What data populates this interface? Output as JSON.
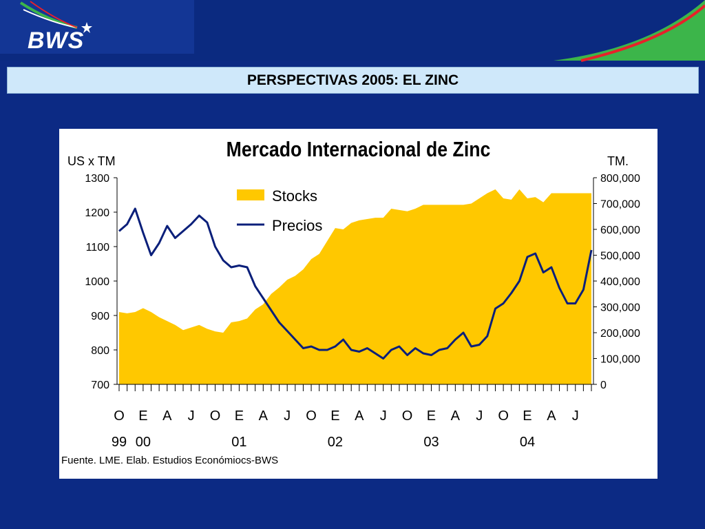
{
  "header": {
    "logo": "BWS",
    "slide_title": "PERSPECTIVAS 2005: EL ZINC"
  },
  "colors": {
    "background": "#0c2a84",
    "stocks_fill": "#ffc800",
    "prices_line": "#0a1f7a",
    "logo_swoosh_green": "#3cb54a",
    "logo_swoosh_red": "#e8202a"
  },
  "chart_data": {
    "type": "area",
    "title": "Mercado Internacional de Zinc",
    "y_left_label": "US x TM",
    "y_right_label": "TM.",
    "y_left_range": [
      700,
      1300
    ],
    "y_left_ticks": [
      "1300",
      "1200",
      "1100",
      "1000",
      "900",
      "800",
      "700"
    ],
    "y_right_range": [
      0,
      800000
    ],
    "y_right_ticks": [
      "800,000",
      "700,000",
      "600,000",
      "500,000",
      "400,000",
      "300,000",
      "200,000",
      "100,000",
      "0"
    ],
    "x_month_labels": [
      "O",
      "E",
      "A",
      "J",
      "O",
      "E",
      "A",
      "J",
      "O",
      "E",
      "A",
      "J",
      "O",
      "E",
      "A",
      "J",
      "O",
      "E",
      "A",
      "J"
    ],
    "x_year_labels": [
      {
        "label": "99",
        "month_index": 0
      },
      {
        "label": "00",
        "month_index": 1
      },
      {
        "label": "01",
        "month_index": 5
      },
      {
        "label": "02",
        "month_index": 9
      },
      {
        "label": "03",
        "month_index": 13
      },
      {
        "label": "04",
        "month_index": 17
      }
    ],
    "legend": [
      "Stocks",
      "Precios"
    ],
    "legend_position": "top-center",
    "source": "Fuente. LME. Elab. Estudios Económiocs-BWS",
    "series": [
      {
        "name": "Stocks",
        "axis": "right",
        "kind": "area",
        "x": [
          0,
          1,
          2,
          3,
          4,
          5,
          6,
          7,
          8,
          9,
          10,
          11,
          12,
          13,
          14,
          15,
          16,
          17,
          18,
          19,
          20,
          21,
          22,
          23,
          24,
          25,
          26,
          27,
          28,
          29,
          30,
          31,
          32,
          33,
          34,
          35,
          36,
          37,
          38,
          39,
          40,
          41,
          42,
          43,
          44,
          45,
          46,
          47,
          48,
          49,
          50,
          51,
          52,
          53,
          54,
          55,
          56,
          57,
          58,
          59
        ],
        "values": [
          280000,
          275000,
          280000,
          295000,
          280000,
          260000,
          245000,
          230000,
          210000,
          220000,
          230000,
          215000,
          205000,
          200000,
          240000,
          245000,
          255000,
          290000,
          310000,
          350000,
          375000,
          405000,
          420000,
          445000,
          485000,
          505000,
          555000,
          605000,
          600000,
          625000,
          635000,
          640000,
          645000,
          645000,
          680000,
          675000,
          670000,
          680000,
          695000,
          695000,
          695000,
          695000,
          695000,
          695000,
          700000,
          720000,
          740000,
          755000,
          720000,
          715000,
          755000,
          720000,
          725000,
          705000,
          740000,
          740000,
          740000,
          740000,
          740000,
          740000
        ]
      },
      {
        "name": "Precios",
        "axis": "left",
        "kind": "line",
        "x": [
          0,
          1,
          2,
          3,
          4,
          5,
          6,
          7,
          8,
          9,
          10,
          11,
          12,
          13,
          14,
          15,
          16,
          17,
          18,
          19,
          20,
          21,
          22,
          23,
          24,
          25,
          26,
          27,
          28,
          29,
          30,
          31,
          32,
          33,
          34,
          35,
          36,
          37,
          38,
          39,
          40,
          41,
          42,
          43,
          44,
          45,
          46,
          47,
          48,
          49,
          50,
          51,
          52,
          53,
          54,
          55,
          56,
          57,
          58,
          59
        ],
        "values": [
          1145,
          1165,
          1210,
          1140,
          1075,
          1110,
          1160,
          1125,
          1145,
          1165,
          1190,
          1170,
          1100,
          1060,
          1040,
          1045,
          1040,
          985,
          950,
          915,
          880,
          855,
          830,
          805,
          810,
          800,
          800,
          810,
          830,
          800,
          795,
          805,
          790,
          775,
          800,
          810,
          785,
          805,
          790,
          785,
          800,
          805,
          830,
          850,
          810,
          815,
          840,
          920,
          935,
          965,
          1000,
          1070,
          1080,
          1025,
          1040,
          980,
          935,
          935,
          975,
          1090
        ]
      }
    ]
  }
}
